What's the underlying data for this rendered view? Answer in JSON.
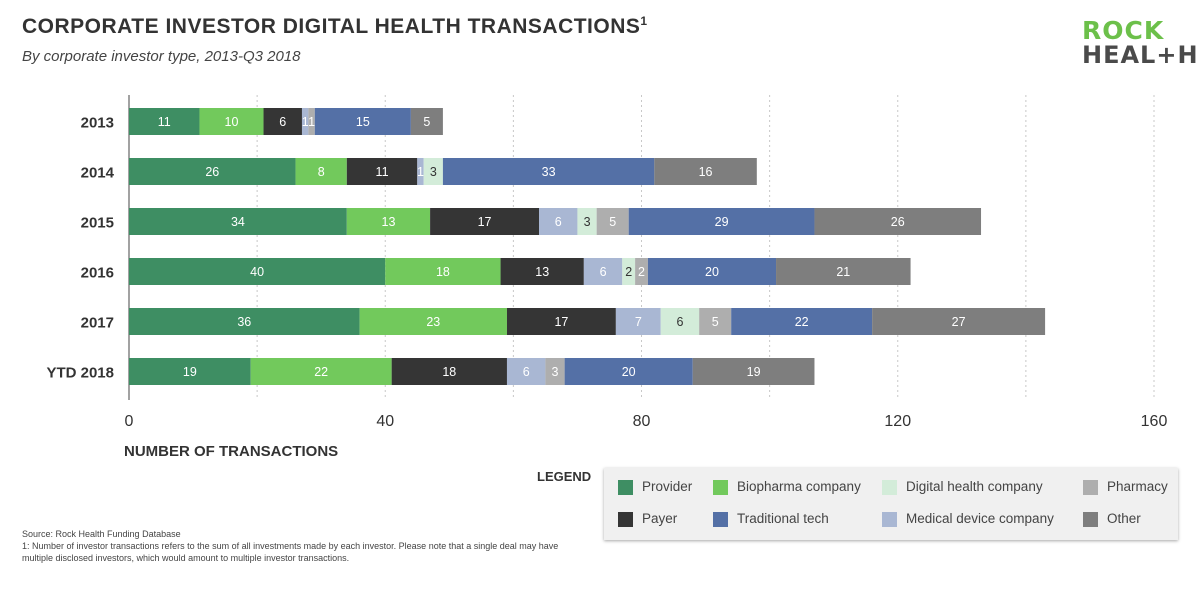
{
  "header": {
    "title": "CORPORATE INVESTOR DIGITAL HEALTH TRANSACTIONS",
    "title_sup": "1",
    "subtitle": "By corporate investor type, 2013-Q3 2018"
  },
  "logo": {
    "line1": "ROCK",
    "line2": "HEAL+H"
  },
  "legend": {
    "title": "LEGEND",
    "items": [
      {
        "label": "Provider",
        "color": "#3e8e63"
      },
      {
        "label": "Biopharma company",
        "color": "#72c95c"
      },
      {
        "label": "Digital health company",
        "color": "#d3ecd9"
      },
      {
        "label": "Pharmacy",
        "color": "#aeaeae"
      },
      {
        "label": "Payer",
        "color": "#353535"
      },
      {
        "label": "Traditional tech",
        "color": "#5470a6"
      },
      {
        "label": "Medical device company",
        "color": "#a9b7d3"
      },
      {
        "label": "Other",
        "color": "#7e7e7e"
      }
    ]
  },
  "source": {
    "line1": "Source: Rock Health Funding Database",
    "line2": "1: Number of investor transactions refers to the sum of all investments made by each investor. Please note that a single deal may have multiple disclosed investors, which would amount to multiple investor transactions."
  },
  "chart_data": {
    "type": "bar",
    "orientation": "horizontal",
    "stacked": true,
    "categories": [
      "2013",
      "2014",
      "2015",
      "2016",
      "2017",
      "YTD 2018"
    ],
    "xlabel": "NUMBER OF TRANSACTIONS",
    "xlim": [
      0,
      160
    ],
    "xticks": [
      0,
      40,
      80,
      120,
      160
    ],
    "grid": "vertical dashed",
    "series": [
      {
        "name": "Provider",
        "color": "#3e8e63",
        "label_color": "#ffffff",
        "values": [
          11,
          26,
          34,
          40,
          36,
          19
        ]
      },
      {
        "name": "Biopharma company",
        "color": "#72c95c",
        "label_color": "#ffffff",
        "values": [
          10,
          8,
          13,
          18,
          23,
          22
        ]
      },
      {
        "name": "Payer",
        "color": "#353535",
        "label_color": "#ffffff",
        "values": [
          6,
          11,
          17,
          13,
          17,
          18
        ]
      },
      {
        "name": "Medical device company",
        "color": "#a9b7d3",
        "label_color": "#ffffff",
        "values": [
          0,
          1,
          6,
          6,
          7,
          6
        ]
      },
      {
        "name": "Digital health company",
        "color": "#d3ecd9",
        "label_color": "#333333",
        "values": [
          0,
          3,
          3,
          2,
          6,
          0
        ]
      },
      {
        "name": "Pharmacy",
        "color": "#aeaeae",
        "label_color": "#ffffff",
        "values": [
          1,
          0,
          5,
          2,
          5,
          3
        ]
      },
      {
        "name": "Traditional tech",
        "color": "#5470a6",
        "label_color": "#ffffff",
        "values": [
          15,
          33,
          29,
          20,
          22,
          20
        ]
      },
      {
        "name": "Other",
        "color": "#7e7e7e",
        "label_color": "#ffffff",
        "values": [
          5,
          16,
          26,
          21,
          27,
          19
        ]
      }
    ],
    "extra_segments": [
      {
        "category": "2013",
        "after_series": "Payer",
        "value": 1,
        "color": "#a9b7d3",
        "label": "1"
      }
    ]
  }
}
